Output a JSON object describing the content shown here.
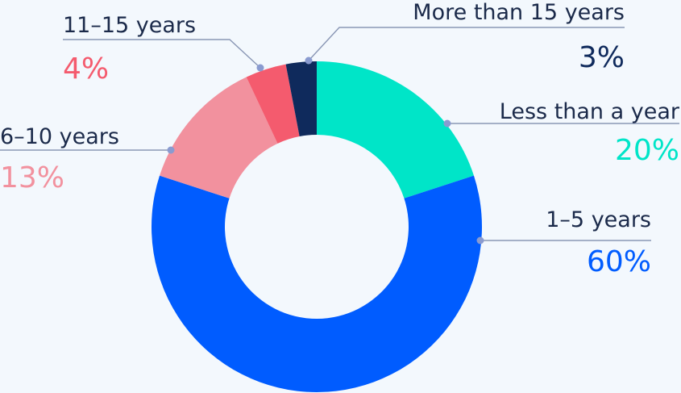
{
  "chart_data": {
    "type": "pie",
    "variant": "donut",
    "legend": "none",
    "slices": [
      {
        "label": "Less than a year",
        "value": 20,
        "display": "20%",
        "color": "#00e5c8"
      },
      {
        "label": "1–5 years",
        "value": 60,
        "display": "60%",
        "color": "#005cff"
      },
      {
        "label": "6–10 years",
        "value": 13,
        "display": "13%",
        "color": "#f2919e"
      },
      {
        "label": "11–15 years",
        "value": 4,
        "display": "4%",
        "color": "#f45b6e"
      },
      {
        "label": "More than 15 years",
        "value": 3,
        "display": "3%",
        "color": "#0f2a5c"
      }
    ]
  }
}
